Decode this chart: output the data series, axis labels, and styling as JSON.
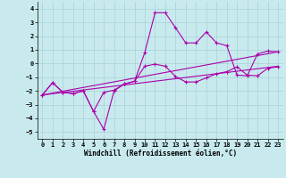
{
  "xlabel": "Windchill (Refroidissement éolien,°C)",
  "background_color": "#c8eaee",
  "grid_color": "#b0d8dc",
  "line_color": "#aa00aa",
  "xlim": [
    -0.5,
    23.5
  ],
  "ylim": [
    -5.5,
    4.5
  ],
  "yticks": [
    -5,
    -4,
    -3,
    -2,
    -1,
    0,
    1,
    2,
    3,
    4
  ],
  "xticks": [
    0,
    1,
    2,
    3,
    4,
    5,
    6,
    7,
    8,
    9,
    10,
    11,
    12,
    13,
    14,
    15,
    16,
    17,
    18,
    19,
    20,
    21,
    22,
    23
  ],
  "line1_x": [
    0,
    1,
    2,
    3,
    4,
    5,
    6,
    7,
    8,
    9,
    10,
    11,
    12,
    13,
    14,
    15,
    16,
    17,
    18,
    19,
    20,
    21,
    22,
    23
  ],
  "line1_y": [
    -2.3,
    -1.4,
    -2.1,
    -2.2,
    -2.0,
    -3.5,
    -4.8,
    -2.0,
    -1.5,
    -1.3,
    0.8,
    3.7,
    3.7,
    2.6,
    1.5,
    1.5,
    2.3,
    1.5,
    1.3,
    -0.85,
    -0.9,
    0.7,
    0.9,
    0.85
  ],
  "line2_x": [
    0,
    1,
    2,
    3,
    4,
    5,
    6,
    7,
    8,
    9,
    10,
    11,
    12,
    13,
    14,
    15,
    16,
    17,
    18,
    19,
    20,
    21,
    22,
    23
  ],
  "line2_y": [
    -2.3,
    -1.4,
    -2.1,
    -2.2,
    -2.0,
    -3.5,
    -2.1,
    -1.95,
    -1.5,
    -1.3,
    -0.2,
    -0.05,
    -0.2,
    -0.95,
    -1.35,
    -1.35,
    -1.05,
    -0.75,
    -0.6,
    -0.25,
    -0.85,
    -0.9,
    -0.35,
    -0.25
  ],
  "line3_x": [
    0,
    23
  ],
  "line3_y": [
    -2.3,
    -0.2
  ],
  "line4_x": [
    0,
    23
  ],
  "line4_y": [
    -2.3,
    0.85
  ]
}
